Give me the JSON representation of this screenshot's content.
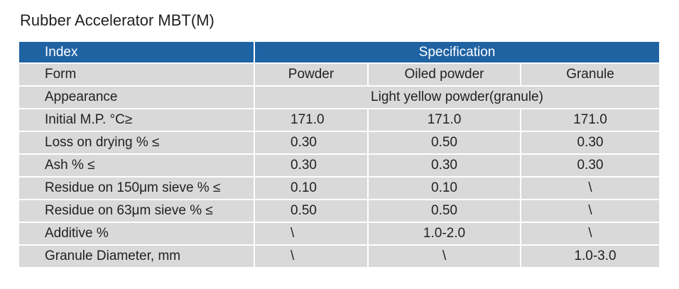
{
  "title": "Rubber Accelerator MBT(M)",
  "table": {
    "header": {
      "index_label": "Index",
      "spec_label": "Specification"
    },
    "rows": [
      {
        "label": "Form",
        "powder": "Powder",
        "oiled": "Oiled powder",
        "granule": "Granule"
      },
      {
        "label": "Appearance",
        "merged": "Light yellow powder(granule)"
      },
      {
        "label": "Initial M.P. °C≥",
        "powder": "171.0",
        "oiled": "171.0",
        "granule": "171.0"
      },
      {
        "label": "Loss on drying % ≤",
        "powder": "0.30",
        "oiled": "0.50",
        "granule": "0.30"
      },
      {
        "label": "Ash % ≤",
        "powder": "0.30",
        "oiled": "0.30",
        "granule": "0.30"
      },
      {
        "label": "Residue on 150μm sieve % ≤",
        "powder": "0.10",
        "oiled": "0.10",
        "granule": "\\"
      },
      {
        "label": "Residue on 63μm sieve % ≤",
        "powder": "0.50",
        "oiled": "0.50",
        "granule": "\\"
      },
      {
        "label": "Additive %",
        "powder": "\\",
        "oiled": "1.0-2.0",
        "granule": "\\"
      },
      {
        "label": "Granule Diameter, mm",
        "powder": "\\",
        "oiled": "\\",
        "granule": "1.0-3.0"
      }
    ]
  },
  "colors": {
    "header_bg": "#1f63a3",
    "row_bg": "#d9d9d9",
    "text": "#231f20"
  }
}
